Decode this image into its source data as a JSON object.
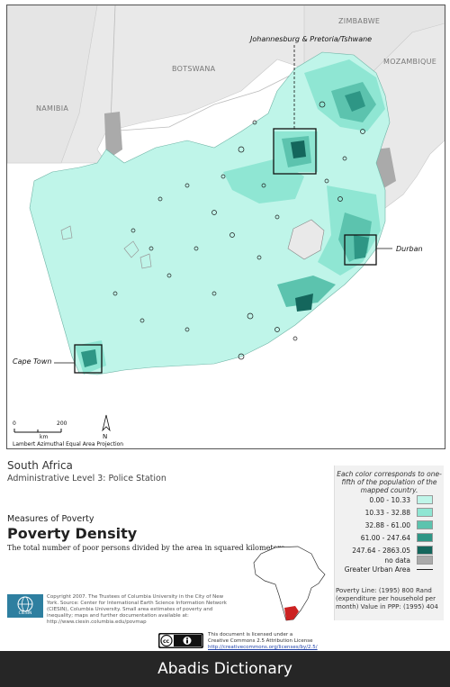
{
  "map": {
    "country_labels": {
      "zimbabwe": "ZIMBABWE",
      "botswana": "BOTSWANA",
      "mozambique": "MOZAMBIQUE",
      "namibia": "NAMIBIA"
    },
    "city_labels": {
      "johannesburg": "Johannesburg & Pretoria/Tshwane",
      "durban": "Durban",
      "cape_town": "Cape Town"
    },
    "scale": {
      "zero": "0",
      "two_hundred": "200",
      "unit": "km",
      "projection": "Lambert Azimuthal Equal Area Projection"
    },
    "north_arrow": "N",
    "colors": {
      "ocean": "#ffffff",
      "neighbor_land": "#e9e9e9",
      "no_data": "#aaaaaa",
      "class1": "#bff5e9",
      "class2": "#8fe6d3",
      "class3": "#5cc3ae",
      "class4": "#2e9685",
      "class5": "#14665c"
    }
  },
  "title": {
    "country": "South Africa",
    "admin_level": "Administrative Level 3: Police Station"
  },
  "measure": {
    "heading": "Measures of Poverty",
    "name": "Poverty Density",
    "description": "The total number of poor persons divided by the area in squared kilometers."
  },
  "legend": {
    "note": "Each color corresponds to one-fifth of the population of the mapped country.",
    "classes": [
      {
        "label": "0.00 - 10.33",
        "color": "#bff5e9"
      },
      {
        "label": "10.33 - 32.88",
        "color": "#8fe6d3"
      },
      {
        "label": "32.88 - 61.00",
        "color": "#5cc3ae"
      },
      {
        "label": "61.00 - 247.64",
        "color": "#2e9685"
      },
      {
        "label": "247.64 - 2863.05",
        "color": "#14665c"
      }
    ],
    "no_data": "no data",
    "urban_area": "Greater Urban Area",
    "poverty_line": "Poverty Line: (1995) 800 Rand (expenditure per household per month) Value in PPP: (1995) 404"
  },
  "credits": {
    "logo": "CIESIN",
    "copyright": "Copyright 2007. The Trustees of Columbia University in the City of New York. Source: Center for International Earth Science Information Network (CIESIN), Columbia University. Small area estimates of poverty and inequality; maps and further documentation available at: http://www.ciesin.columbia.edu/povmap",
    "license_line1": "This document is licensed under a",
    "license_line2": "Creative Commons 2.5 Attribution License",
    "license_url": "http://creativecommons.org/licenses/by/2.5/"
  },
  "footer": {
    "text": "Abadis Dictionary"
  }
}
